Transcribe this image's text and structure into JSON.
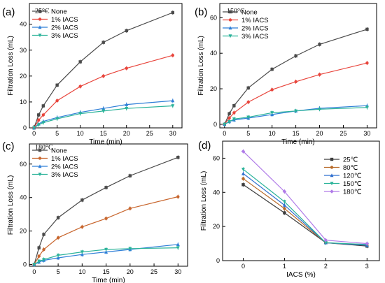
{
  "chart_data": [
    {
      "type": "line",
      "panel_label": "(a)",
      "temperature_label": "25°C",
      "xlabel": "Time (min)",
      "ylabel": "Filtration Loss (mL)",
      "xlim": [
        -1,
        32
      ],
      "ylim": [
        0,
        48
      ],
      "xticks": [
        0,
        5,
        10,
        15,
        20,
        25,
        30
      ],
      "yticks": [
        0,
        10,
        20,
        30,
        40
      ],
      "legend_position": "top-left",
      "x": [
        0,
        1,
        2,
        5,
        10,
        15,
        20,
        30
      ],
      "series": [
        {
          "name": "None",
          "color": "#4a4a4a",
          "values": [
            0,
            5,
            8.5,
            16.5,
            25.5,
            33,
            37.5,
            44.5
          ]
        },
        {
          "name": "1% IACS",
          "color": "#e8453c",
          "values": [
            0,
            3,
            5,
            10.5,
            16,
            20,
            23,
            28
          ]
        },
        {
          "name": "2% IACS",
          "color": "#2f7fd8",
          "values": [
            0,
            1.5,
            2.5,
            4,
            6,
            7.5,
            9,
            10.5
          ]
        },
        {
          "name": "3% IACS",
          "color": "#2bb39a",
          "values": [
            0,
            1.2,
            2,
            3.5,
            5.5,
            6.5,
            7.5,
            8.5
          ]
        }
      ]
    },
    {
      "type": "line",
      "panel_label": "(b)",
      "temperature_label": "150°C",
      "xlabel": "Time (min)",
      "ylabel": "Filtration Loss (mL)",
      "xlim": [
        -1,
        32
      ],
      "ylim": [
        -2,
        68
      ],
      "xticks": [
        0,
        5,
        10,
        15,
        20,
        25,
        30
      ],
      "yticks": [
        0,
        20,
        40,
        60
      ],
      "legend_position": "top-left",
      "x": [
        0,
        1,
        2,
        5,
        10,
        15,
        20,
        30
      ],
      "series": [
        {
          "name": "None",
          "color": "#4a4a4a",
          "values": [
            0,
            6,
            10.5,
            20.5,
            31,
            38.5,
            45,
            53.5
          ]
        },
        {
          "name": "1% IACS",
          "color": "#e8453c",
          "values": [
            0,
            3.5,
            6.5,
            12.5,
            19.5,
            24,
            28,
            34.5
          ]
        },
        {
          "name": "2% IACS",
          "color": "#2f7fd8",
          "values": [
            0,
            1.5,
            2.5,
            3.5,
            5.5,
            7.5,
            9,
            10.5
          ]
        },
        {
          "name": "3% IACS",
          "color": "#2bb39a",
          "values": [
            0,
            1.5,
            3,
            4,
            6.5,
            7.5,
            8.5,
            9.5
          ]
        }
      ]
    },
    {
      "type": "line",
      "panel_label": "(c)",
      "temperature_label": "180°C",
      "xlabel": "Time (min)",
      "ylabel": "Filtration Loss (mL)",
      "xlim": [
        -1,
        32
      ],
      "ylim": [
        -1,
        72
      ],
      "xticks": [
        0,
        5,
        10,
        15,
        20,
        25,
        30
      ],
      "yticks": [
        0,
        20,
        40,
        60
      ],
      "legend_position": "top-left",
      "x": [
        0,
        1,
        2,
        5,
        10,
        15,
        20,
        30
      ],
      "series": [
        {
          "name": "None",
          "color": "#4a4a4a",
          "values": [
            0,
            10,
            18,
            28,
            38.5,
            46,
            53,
            64
          ]
        },
        {
          "name": "1% IACS",
          "color": "#c8662e",
          "values": [
            0,
            5,
            9,
            16,
            22.5,
            27.5,
            33.5,
            40.5
          ]
        },
        {
          "name": "2% IACS",
          "color": "#2f7fd8",
          "values": [
            0,
            1.5,
            2.5,
            4,
            6,
            7.5,
            9,
            12
          ]
        },
        {
          "name": "3% IACS",
          "color": "#2bb39a",
          "values": [
            0,
            2,
            3,
            5.5,
            7.5,
            9,
            9.5,
            10
          ]
        }
      ]
    },
    {
      "type": "line",
      "panel_label": "(d)",
      "xlabel": "IACS (%)",
      "ylabel": "Filtration Loss (mL)",
      "xlim": [
        -0.5,
        3.3
      ],
      "ylim": [
        0,
        70
      ],
      "xticks": [
        0,
        1,
        2,
        3
      ],
      "yticks": [
        0,
        20,
        40,
        60
      ],
      "legend_position": "top-right",
      "x": [
        0,
        1,
        2,
        3
      ],
      "series": [
        {
          "name": "25℃",
          "color": "#3d3d3d",
          "values": [
            44.5,
            28,
            10.5,
            8.5
          ]
        },
        {
          "name": "80℃",
          "color": "#b86b2a",
          "values": [
            48,
            30.5,
            10.5,
            9
          ]
        },
        {
          "name": "120℃",
          "color": "#2f6fcf",
          "values": [
            51,
            32.5,
            10.5,
            9
          ]
        },
        {
          "name": "150℃",
          "color": "#2bb39a",
          "values": [
            53.5,
            34.5,
            10.5,
            9.5
          ]
        },
        {
          "name": "180℃",
          "color": "#b07be8",
          "values": [
            64,
            40.5,
            12,
            10
          ]
        }
      ]
    }
  ]
}
